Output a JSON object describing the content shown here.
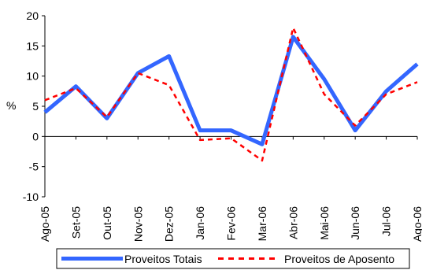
{
  "chart_data": {
    "type": "line",
    "categories": [
      "Ago-05",
      "Set-05",
      "Out-05",
      "Nov-05",
      "Dez-05",
      "Jan-06",
      "Fev-06",
      "Mar-06",
      "Abr-06",
      "Mai-06",
      "Jun-06",
      "Jul-06",
      "Ago-06"
    ],
    "ylabel": "%",
    "ylim": [
      -10,
      20
    ],
    "yticks": [
      -10,
      -5,
      0,
      5,
      10,
      15,
      20
    ],
    "grid": false,
    "legend_position": "bottom",
    "series": [
      {
        "name": "Proveitos Totais",
        "color": "#3366ff",
        "style": "solid",
        "values": [
          4.0,
          8.3,
          3.0,
          10.5,
          13.3,
          1.0,
          1.0,
          -1.3,
          16.5,
          9.5,
          1.0,
          7.5,
          12.0
        ]
      },
      {
        "name": "Proveitos de Aposento",
        "color": "#ff0000",
        "style": "dashed",
        "values": [
          6.0,
          8.0,
          3.2,
          10.5,
          8.5,
          -0.6,
          -0.3,
          -4.0,
          18.0,
          7.0,
          1.8,
          7.0,
          9.0
        ]
      }
    ]
  }
}
